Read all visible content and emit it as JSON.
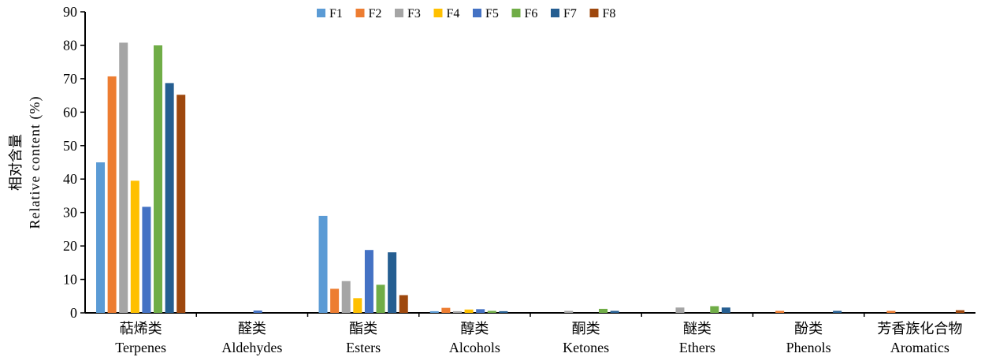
{
  "chart_data": {
    "type": "bar",
    "ylabel_cn": "相对含量",
    "ylabel_en": "Relative content (%)",
    "ylim": [
      0,
      90
    ],
    "yticks": [
      0,
      10,
      20,
      30,
      40,
      50,
      60,
      70,
      80,
      90
    ],
    "grid": false,
    "legend_position": "top-center",
    "categories": [
      {
        "cn": "萜烯类",
        "en": "Terpenes"
      },
      {
        "cn": "醛类",
        "en": "Aldehydes"
      },
      {
        "cn": "酯类",
        "en": "Esters"
      },
      {
        "cn": "醇类",
        "en": "Alcohols"
      },
      {
        "cn": "酮类",
        "en": "Ketones"
      },
      {
        "cn": "醚类",
        "en": "Ethers"
      },
      {
        "cn": "酚类",
        "en": "Phenols"
      },
      {
        "cn": "芳香族化合物",
        "en": "Aromatics"
      }
    ],
    "series": [
      {
        "name": "F1",
        "color": "#5B9BD5",
        "values": [
          45.0,
          0,
          29.0,
          0.5,
          0,
          0,
          0,
          0
        ]
      },
      {
        "name": "F2",
        "color": "#ED7D31",
        "values": [
          70.7,
          0,
          7.2,
          1.5,
          0,
          0,
          0.6,
          0.6
        ]
      },
      {
        "name": "F3",
        "color": "#A5A5A5",
        "values": [
          80.8,
          0,
          9.5,
          0.5,
          0.6,
          1.6,
          0,
          0
        ]
      },
      {
        "name": "F4",
        "color": "#FFC000",
        "values": [
          39.5,
          0,
          4.4,
          1.0,
          0,
          0,
          0,
          0
        ]
      },
      {
        "name": "F5",
        "color": "#4472C4",
        "values": [
          31.7,
          0.7,
          18.8,
          1.1,
          0,
          0,
          0,
          0
        ]
      },
      {
        "name": "F6",
        "color": "#70AD47",
        "values": [
          80.0,
          0,
          8.4,
          0.6,
          1.2,
          2.0,
          0,
          0
        ]
      },
      {
        "name": "F7",
        "color": "#255E91",
        "values": [
          68.7,
          0,
          18.1,
          0.5,
          0.6,
          1.6,
          0.6,
          0
        ]
      },
      {
        "name": "F8",
        "color": "#9E480E",
        "values": [
          65.2,
          0,
          5.3,
          0,
          0,
          0,
          0,
          0.8
        ]
      }
    ]
  }
}
